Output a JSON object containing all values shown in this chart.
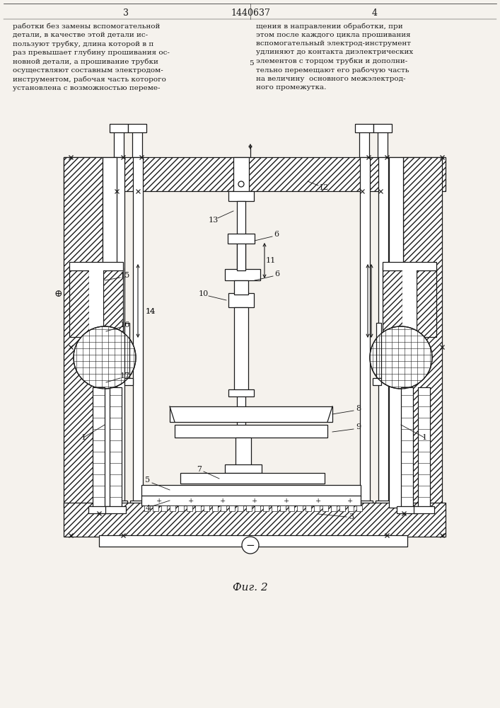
{
  "title": "1440637",
  "page_left": "3",
  "page_right": "4",
  "fig_label": "Фиг. 2",
  "text_left_all": "работки без замены вспомогательной\nдетали, в качестве этой детали ис-\nпользуют трубку, длина которой в п\nраз превышает глубину прошивания ос-\nновной детали, а прошивание трубки\nосуществляют составным электродом-\nинструментом, рабочая часть которого\nустановлена с возможностью переме-",
  "text_right_all": "щения в направлении обработки, при\nэтом после каждого цикла прошивания\nвспомогательный электрод-инструмент\nудлиняют до контакта диэлектрических\nэлементов с торцом трубки и дополни-\nтельно перемещают его рабочую часть\nна величину  основного межэлектрод-\nного промежутка.",
  "line_number": "5",
  "bg_color": "#f5f2ed",
  "lc": "#1a1a1a",
  "lw": 0.9
}
